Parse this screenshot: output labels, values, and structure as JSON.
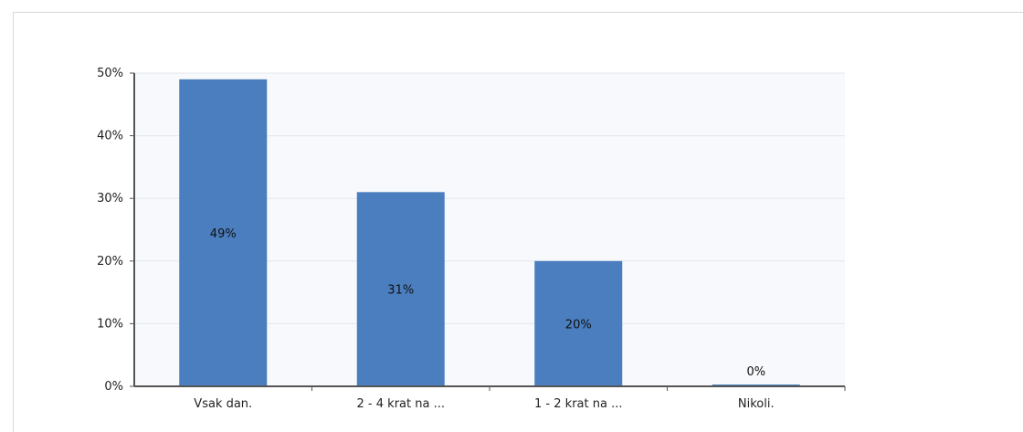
{
  "chart_data": {
    "type": "bar",
    "categories": [
      "Vsak dan.",
      "2 - 4 krat na ...",
      "1 - 2 krat na ...",
      "Nikoli."
    ],
    "values": [
      49,
      31,
      20,
      0
    ],
    "data_labels": [
      "49%",
      "31%",
      "20%",
      "0%"
    ],
    "title": "",
    "xlabel": "",
    "ylabel": "",
    "ylim": [
      0,
      50
    ],
    "yticks": [
      0,
      10,
      20,
      30,
      40,
      50
    ],
    "ytick_labels": [
      "0%",
      "10%",
      "20%",
      "30%",
      "40%",
      "50%"
    ],
    "grid": true,
    "legend": "none",
    "colors": {
      "bar": "#4a7ebf",
      "plot_background": "#f7f9fc",
      "grid": "#e3e8ee",
      "axis": "#555555"
    }
  }
}
